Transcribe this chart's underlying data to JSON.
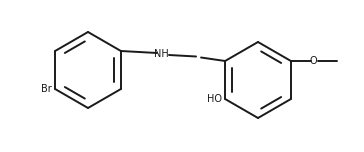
{
  "bg_color": "#ffffff",
  "line_color": "#1a1a1a",
  "text_color": "#1a1a1a",
  "bond_lw": 1.4,
  "figsize": [
    3.64,
    1.52
  ],
  "dpi": 100,
  "br_label": "Br",
  "nh_label": "NH",
  "ho_label": "HO",
  "o_label": "O",
  "font_size": 7.0
}
